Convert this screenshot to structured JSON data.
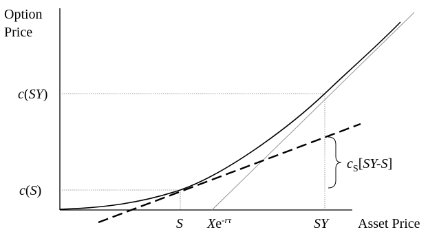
{
  "axes": {
    "y_label_line1": "Option",
    "y_label_line2": "Price",
    "x_label": "Asset Price"
  },
  "y_ticks": {
    "c_sy": {
      "prefix": "c",
      "open": "(",
      "arg": "SY",
      "close": ")"
    },
    "c_s": {
      "prefix": "c",
      "open": "(",
      "arg": "S",
      "close": ")"
    }
  },
  "x_ticks": {
    "s": "S",
    "strike_base": "X",
    "strike_e": "e",
    "strike_exp": "-rτ",
    "sy": "SY"
  },
  "brace_label": {
    "c": "c",
    "sub": "S",
    "open": "[",
    "expr": "SY-S",
    "close": "]"
  },
  "colors": {
    "line": "#000000",
    "guide": "#7f7f7f",
    "background": "#ffffff"
  }
}
